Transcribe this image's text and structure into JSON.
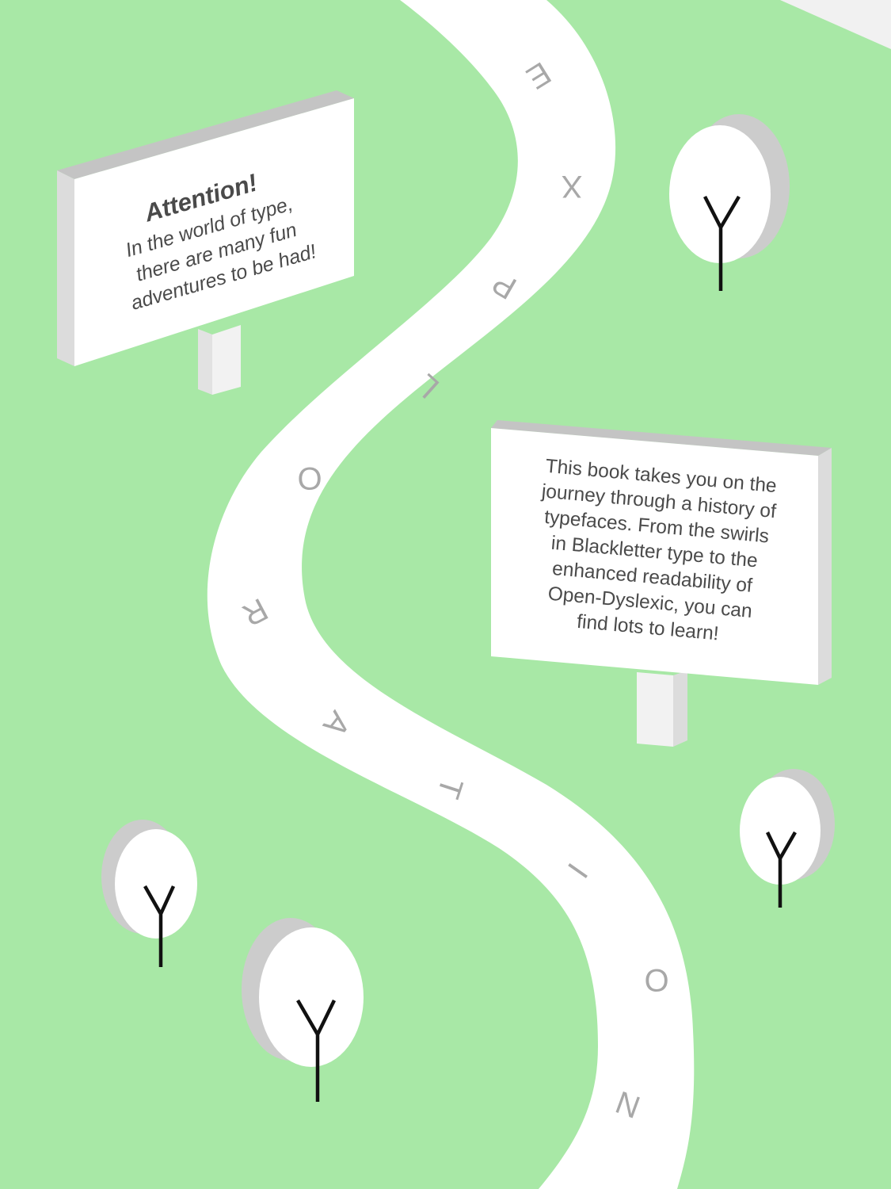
{
  "colors": {
    "grass": "#a8e8a6",
    "path": "#ffffff",
    "sign_face": "#ffffff",
    "sign_side": "#dcdcdc",
    "sign_top": "#c4c4c4",
    "tree_shadow": "#cccccc",
    "trunk": "#111111",
    "path_letters": "#a8a8a8",
    "sign_text": "#4a4a4a"
  },
  "sign_left": {
    "heading": "Attention!",
    "lines": [
      "In the world of type,",
      "there are many fun",
      "adventures to be had!"
    ]
  },
  "sign_right": {
    "lines": [
      "This book takes you on the",
      "journey through a history of",
      "typefaces. From the swirls",
      "in Blackletter type to the",
      "enhanced readability of",
      "Open-Dyslexic, you can",
      "find lots to learn!"
    ]
  },
  "path_word": [
    "E",
    "X",
    "P",
    "L",
    "O",
    "R",
    "A",
    "T",
    "I",
    "O",
    "N"
  ],
  "trees": [
    {
      "name": "tree-top-right",
      "glyph": "Y"
    },
    {
      "name": "tree-mid-right",
      "glyph": "Y"
    },
    {
      "name": "tree-bottom-left",
      "glyph": "Y"
    },
    {
      "name": "tree-bottom-center",
      "glyph": "Y"
    }
  ],
  "icons": [
    "tree-icon",
    "signpost-icon"
  ]
}
